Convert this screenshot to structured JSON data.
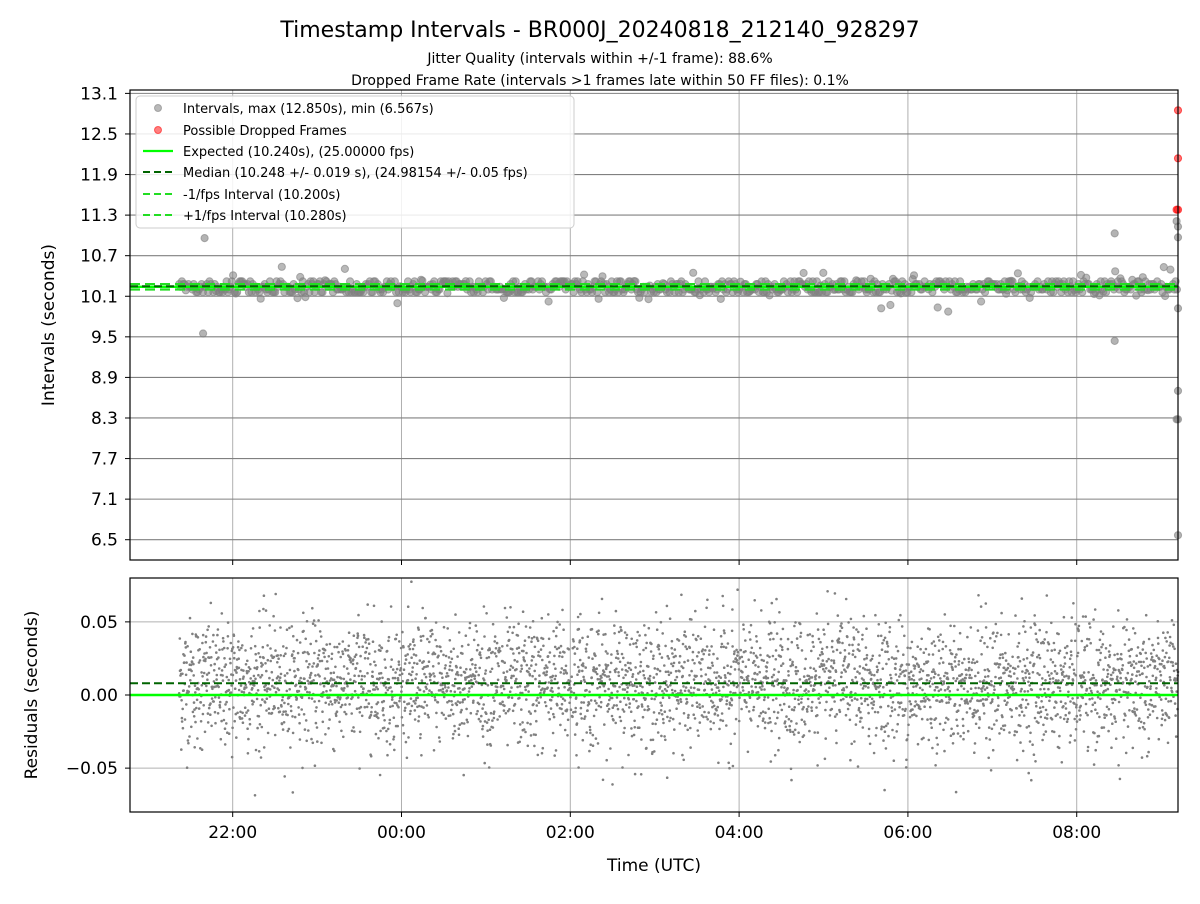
{
  "colors": {
    "expected": "#00ff00",
    "median": "#006400",
    "interval_points": "#808080",
    "dropped_points": "#ff0000",
    "grid": "#b0b0b0",
    "hgrid": "#808080"
  },
  "chart_data": [
    {
      "type": "scatter",
      "title": "Timestamp Intervals - BR000J_20240818_212140_928297",
      "subtitle_1": "Jitter Quality (intervals within +/-1 frame): 88.6%",
      "subtitle_2": "Dropped Frame Rate (intervals >1 frames late within 50 FF files): 0.1%",
      "ylabel": "Intervals (seconds)",
      "xlabel": "",
      "ylim": [
        6.2,
        13.15
      ],
      "yticks": [
        "6.5",
        "7.1",
        "7.7",
        "8.3",
        "8.9",
        "9.5",
        "10.1",
        "10.7",
        "11.3",
        "11.9",
        "12.5",
        "13.1"
      ],
      "x_range_hours": [
        "20:47",
        "09:12"
      ],
      "grid": true,
      "legend_position": "upper-left",
      "legend": [
        "Intervals, max (12.850s), min (6.567s)",
        "Possible Dropped Frames",
        "Expected (10.240s), (25.00000 fps)",
        "Median (10.248 +/- 0.019 s), (24.98154 +/- 0.05 fps)",
        "-1/fps Interval (10.200s)",
        "+1/fps Interval (10.280s)"
      ],
      "expected": 10.24,
      "median": 10.248,
      "minus_interval": 10.2,
      "plus_interval": 10.28,
      "interval_max": 12.85,
      "interval_min": 6.567,
      "data_start": "21:22",
      "data_end": "09:12",
      "sample_interval_s": 10.24,
      "notable_points": [
        {
          "x": "21:40",
          "y": 10.96
        },
        {
          "x": "21:39",
          "y": 9.55
        },
        {
          "x": "08:27",
          "y": 11.03
        },
        {
          "x": "08:27",
          "y": 9.44
        },
        {
          "x": "09:11",
          "y": 11.21
        },
        {
          "x": "09:12",
          "y": 11.13
        },
        {
          "x": "09:12",
          "y": 10.97
        },
        {
          "x": "09:12",
          "y": 9.92
        },
        {
          "x": "09:12",
          "y": 8.7
        },
        {
          "x": "09:11",
          "y": 8.28
        },
        {
          "x": "09:12",
          "y": 8.28
        },
        {
          "x": "09:12",
          "y": 6.567
        }
      ],
      "dropped_frames": [
        {
          "x": "09:12",
          "y": 12.85
        },
        {
          "x": "09:12",
          "y": 12.14
        },
        {
          "x": "09:11",
          "y": 11.38
        },
        {
          "x": "09:12",
          "y": 11.38
        }
      ]
    },
    {
      "type": "scatter",
      "ylabel": "Residuals (seconds)",
      "xlabel": "Time (UTC)",
      "ylim": [
        -0.08,
        0.08
      ],
      "yticks": [
        "0.05",
        "0.00",
        "−0.05"
      ],
      "xticks": [
        "22:00",
        "00:00",
        "02:00",
        "04:00",
        "06:00",
        "08:00"
      ],
      "median_residual": 0.008,
      "expected_residual": 0.0,
      "grid": true
    }
  ]
}
